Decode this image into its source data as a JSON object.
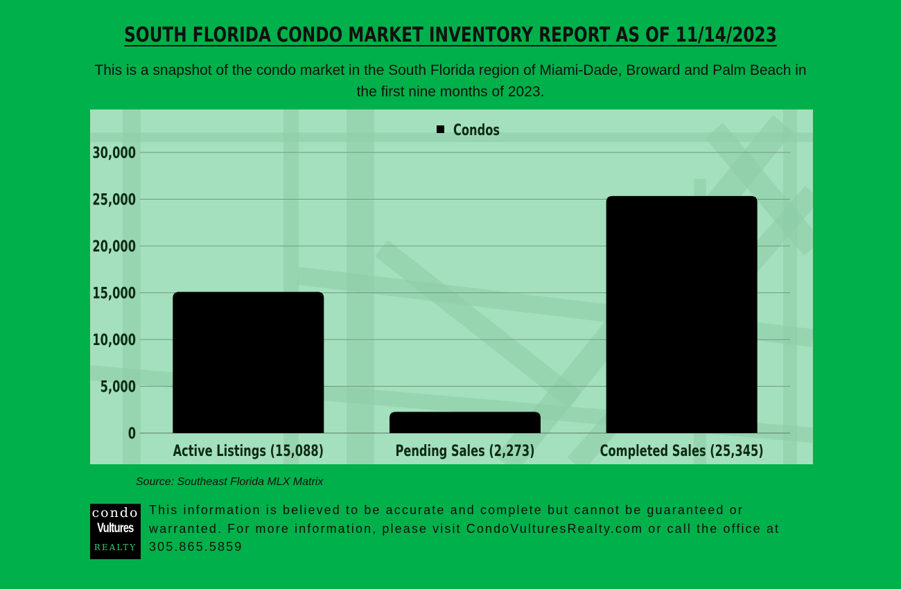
{
  "header": {
    "title": "SOUTH FLORIDA CONDO MARKET INVENTORY REPORT AS OF 11/14/2023",
    "subtitle": "This is a snapshot of the condo market in the South Florida region of Miami-Dade, Broward and Palm Beach in the first nine months of 2023."
  },
  "chart_data": {
    "type": "bar",
    "categories": [
      "Active Listings (15,088)",
      "Pending Sales (2,273)",
      "Completed Sales (25,345)"
    ],
    "series": [
      {
        "name": "Condos",
        "values": [
          15088,
          2273,
          25345
        ],
        "color": "#000000"
      }
    ],
    "ylim": [
      0,
      30000
    ],
    "yticks": [
      0,
      5000,
      10000,
      15000,
      20000,
      25000,
      30000
    ],
    "ytick_labels": [
      "0",
      "5,000",
      "10,000",
      "15,000",
      "20,000",
      "25,000",
      "30,000"
    ],
    "grid": true,
    "legend": "top-center"
  },
  "footer": {
    "source": "Source: Southeast Florida MLX Matrix",
    "logo": {
      "line1": "condo",
      "line2": "Vultures",
      "line3": "REALTY"
    },
    "disclaimer": "This information is believed to be accurate and complete but cannot be guaranteed or warranted. For more information, please visit CondoVulturesRealty.com or call the office at 305.865.5859"
  },
  "colors": {
    "background": "#00b04a",
    "panel": "#a4e0bd",
    "bars": "#000000",
    "text": "#111111"
  }
}
